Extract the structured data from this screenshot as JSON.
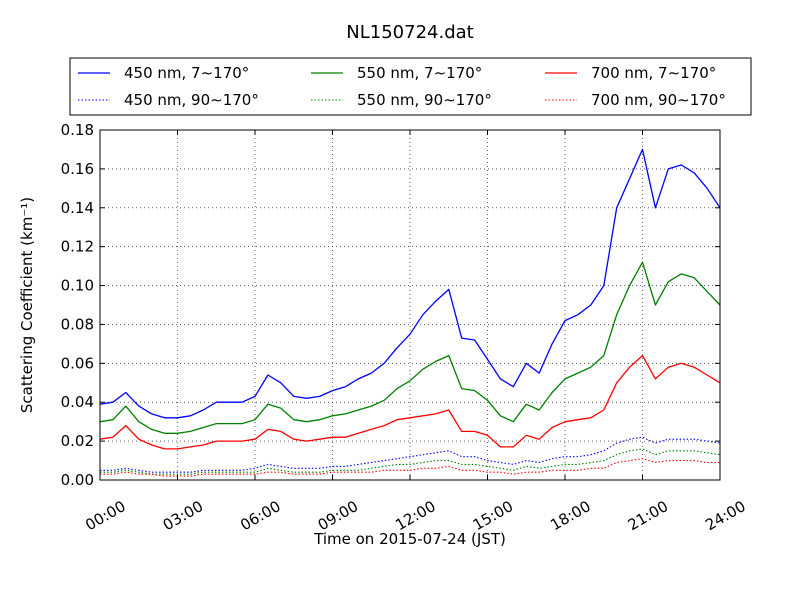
{
  "chart_data": {
    "type": "line",
    "title": "NL150724.dat",
    "xlabel": "Time on 2015-07-24 (JST)",
    "ylabel": "Scattering Coefficient (km⁻¹)",
    "xlim": [
      "00:00",
      "24:00"
    ],
    "ylim": [
      0,
      0.18
    ],
    "x_ticks": [
      "00:00",
      "03:00",
      "06:00",
      "09:00",
      "12:00",
      "15:00",
      "18:00",
      "21:00",
      "24:00"
    ],
    "y_ticks": [
      "0.00",
      "0.02",
      "0.04",
      "0.06",
      "0.08",
      "0.10",
      "0.12",
      "0.14",
      "0.16",
      "0.18"
    ],
    "grid": true,
    "legend_position": "top",
    "x_hours": [
      0,
      0.5,
      1,
      1.5,
      2,
      2.5,
      3,
      3.5,
      4,
      4.5,
      5,
      5.5,
      6,
      6.5,
      7,
      7.5,
      8,
      8.5,
      9,
      9.5,
      10,
      10.5,
      11,
      11.5,
      12,
      12.5,
      13,
      13.5,
      14,
      14.5,
      15,
      15.5,
      16,
      16.5,
      17,
      17.5,
      18,
      18.5,
      19,
      19.5,
      20,
      20.5,
      21,
      21.5,
      22,
      22.5,
      23,
      23.5,
      24
    ],
    "series": [
      {
        "name": "450 nm, 7∼170°",
        "color": "#0000ff",
        "style": "solid",
        "values": [
          0.039,
          0.04,
          0.045,
          0.038,
          0.034,
          0.032,
          0.032,
          0.033,
          0.036,
          0.04,
          0.04,
          0.04,
          0.043,
          0.054,
          0.05,
          0.043,
          0.042,
          0.043,
          0.046,
          0.048,
          0.052,
          0.055,
          0.06,
          0.068,
          0.075,
          0.085,
          0.092,
          0.098,
          0.073,
          0.072,
          0.062,
          0.052,
          0.048,
          0.06,
          0.055,
          0.07,
          0.082,
          0.085,
          0.09,
          0.1,
          0.14,
          0.155,
          0.17,
          0.14,
          0.16,
          0.162,
          0.158,
          0.15,
          0.14
        ]
      },
      {
        "name": "450 nm, 90∼170°",
        "color": "#0000ff",
        "style": "dotted",
        "values": [
          0.005,
          0.005,
          0.006,
          0.005,
          0.004,
          0.004,
          0.004,
          0.004,
          0.005,
          0.005,
          0.005,
          0.005,
          0.006,
          0.008,
          0.007,
          0.006,
          0.006,
          0.006,
          0.007,
          0.007,
          0.008,
          0.009,
          0.01,
          0.011,
          0.012,
          0.013,
          0.014,
          0.015,
          0.012,
          0.012,
          0.01,
          0.009,
          0.008,
          0.01,
          0.009,
          0.011,
          0.012,
          0.012,
          0.013,
          0.015,
          0.019,
          0.021,
          0.022,
          0.019,
          0.021,
          0.021,
          0.021,
          0.02,
          0.019
        ]
      },
      {
        "name": "550 nm, 7∼170°",
        "color": "#008000",
        "style": "solid",
        "values": [
          0.03,
          0.031,
          0.038,
          0.03,
          0.026,
          0.024,
          0.024,
          0.025,
          0.027,
          0.029,
          0.029,
          0.029,
          0.031,
          0.039,
          0.037,
          0.031,
          0.03,
          0.031,
          0.033,
          0.034,
          0.036,
          0.038,
          0.041,
          0.047,
          0.051,
          0.057,
          0.061,
          0.064,
          0.047,
          0.046,
          0.041,
          0.033,
          0.03,
          0.039,
          0.036,
          0.045,
          0.052,
          0.055,
          0.058,
          0.064,
          0.085,
          0.1,
          0.112,
          0.09,
          0.102,
          0.106,
          0.104,
          0.097,
          0.09
        ]
      },
      {
        "name": "550 nm, 90∼170°",
        "color": "#008000",
        "style": "dotted",
        "values": [
          0.004,
          0.004,
          0.005,
          0.004,
          0.003,
          0.003,
          0.003,
          0.003,
          0.004,
          0.004,
          0.004,
          0.004,
          0.004,
          0.006,
          0.005,
          0.004,
          0.004,
          0.004,
          0.005,
          0.005,
          0.005,
          0.006,
          0.007,
          0.008,
          0.008,
          0.009,
          0.01,
          0.01,
          0.008,
          0.008,
          0.007,
          0.006,
          0.005,
          0.007,
          0.006,
          0.007,
          0.008,
          0.008,
          0.009,
          0.01,
          0.013,
          0.015,
          0.016,
          0.013,
          0.015,
          0.015,
          0.015,
          0.014,
          0.013
        ]
      },
      {
        "name": "700 nm, 7∼170°",
        "color": "#ff0000",
        "style": "solid",
        "values": [
          0.021,
          0.022,
          0.028,
          0.021,
          0.018,
          0.016,
          0.016,
          0.017,
          0.018,
          0.02,
          0.02,
          0.02,
          0.021,
          0.026,
          0.025,
          0.021,
          0.02,
          0.021,
          0.022,
          0.022,
          0.024,
          0.026,
          0.028,
          0.031,
          0.032,
          0.033,
          0.034,
          0.036,
          0.025,
          0.025,
          0.023,
          0.017,
          0.017,
          0.023,
          0.021,
          0.027,
          0.03,
          0.031,
          0.032,
          0.036,
          0.05,
          0.058,
          0.064,
          0.052,
          0.058,
          0.06,
          0.058,
          0.054,
          0.05
        ]
      },
      {
        "name": "700 nm, 90∼170°",
        "color": "#ff0000",
        "style": "dotted",
        "values": [
          0.003,
          0.003,
          0.004,
          0.003,
          0.003,
          0.002,
          0.002,
          0.002,
          0.003,
          0.003,
          0.003,
          0.003,
          0.003,
          0.004,
          0.004,
          0.003,
          0.003,
          0.003,
          0.004,
          0.004,
          0.004,
          0.004,
          0.005,
          0.005,
          0.005,
          0.006,
          0.006,
          0.007,
          0.005,
          0.005,
          0.004,
          0.004,
          0.003,
          0.004,
          0.004,
          0.005,
          0.005,
          0.005,
          0.006,
          0.006,
          0.009,
          0.01,
          0.011,
          0.009,
          0.01,
          0.01,
          0.01,
          0.009,
          0.009
        ]
      }
    ]
  }
}
